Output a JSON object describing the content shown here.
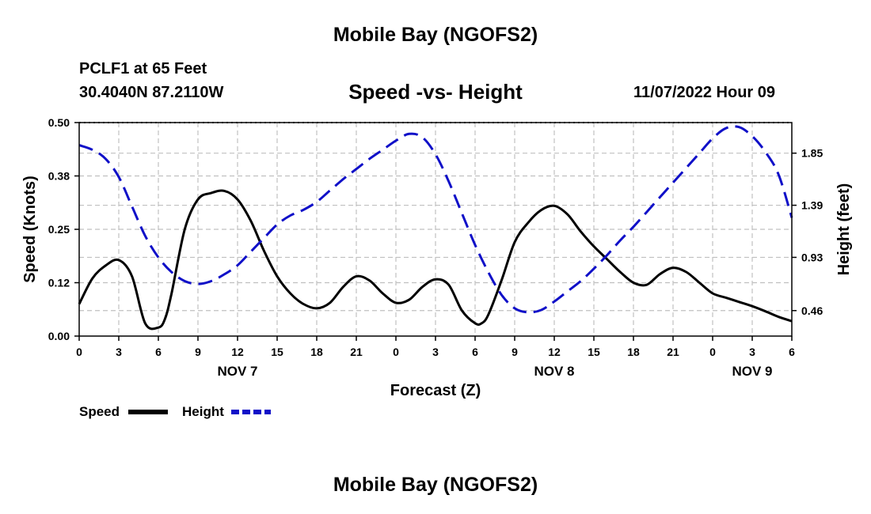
{
  "main_title": "Mobile Bay (NGOFS2)",
  "footer_title": "Mobile Bay (NGOFS2)",
  "station": "PCLF1 at 65 Feet",
  "coordinates": "30.4040N  87.2110W",
  "datetime": "11/07/2022 Hour 09",
  "colors": {
    "speed": "#000000",
    "height": "#1010c8",
    "grid": "#c0c0c0"
  },
  "chart_data": {
    "type": "line",
    "title": "Speed -vs- Height",
    "xlabel": "Forecast (Z)",
    "ylabel": "Speed (Knots)",
    "y2label": "Height (feet)",
    "x_unit": "hours from 00Z Nov 7",
    "xlim": [
      0,
      54
    ],
    "ylim": [
      0,
      0.5
    ],
    "y2lim": [
      0.235,
      2.12
    ],
    "x_ticks": [
      0,
      3,
      6,
      9,
      12,
      15,
      18,
      21,
      24,
      27,
      30,
      33,
      36,
      39,
      42,
      45,
      48,
      51,
      54
    ],
    "x_tick_labels": [
      "0",
      "3",
      "6",
      "9",
      "12",
      "15",
      "18",
      "21",
      "0",
      "3",
      "6",
      "9",
      "12",
      "15",
      "18",
      "21",
      "0",
      "3",
      "6"
    ],
    "date_labels": [
      {
        "x": 12,
        "label": "NOV 7"
      },
      {
        "x": 36,
        "label": "NOV 8"
      },
      {
        "x": 51,
        "label": "NOV 9"
      }
    ],
    "y_ticks": [
      0,
      0.125,
      0.25,
      0.375,
      0.5
    ],
    "y_tick_labels": [
      "0.00",
      "0.12",
      "0.25",
      "0.38",
      "0.50"
    ],
    "y2_ticks": [
      0.46,
      0.93,
      1.39,
      1.85
    ],
    "y2_tick_labels": [
      "0.46",
      "0.93",
      "1.39",
      "1.85"
    ],
    "grid": true,
    "series": [
      {
        "name": "Speed",
        "axis": "left",
        "style": "solid",
        "x": [
          0,
          1,
          2,
          3,
          4,
          5,
          6,
          6.5,
          7,
          8,
          9,
          10,
          11,
          12,
          13,
          14,
          15,
          16,
          17,
          18,
          19,
          20,
          21,
          22,
          23,
          24,
          25,
          26,
          27,
          28,
          29,
          30,
          30.5,
          31,
          32,
          33,
          34,
          35,
          36,
          37,
          38,
          39,
          40,
          41,
          42,
          43,
          44,
          45,
          46,
          47,
          48,
          49,
          50,
          51,
          52,
          53,
          54
        ],
        "y": [
          0.075,
          0.135,
          0.165,
          0.178,
          0.14,
          0.03,
          0.02,
          0.04,
          0.1,
          0.25,
          0.32,
          0.335,
          0.34,
          0.32,
          0.27,
          0.2,
          0.14,
          0.1,
          0.075,
          0.065,
          0.078,
          0.115,
          0.14,
          0.13,
          0.1,
          0.078,
          0.085,
          0.115,
          0.133,
          0.12,
          0.06,
          0.03,
          0.03,
          0.05,
          0.13,
          0.22,
          0.265,
          0.295,
          0.305,
          0.285,
          0.245,
          0.21,
          0.18,
          0.15,
          0.125,
          0.12,
          0.145,
          0.16,
          0.15,
          0.125,
          0.1,
          0.09,
          0.08,
          0.07,
          0.058,
          0.045,
          0.035
        ]
      },
      {
        "name": "Height",
        "axis": "right",
        "style": "dashed",
        "x": [
          0,
          1,
          2,
          3,
          4,
          5,
          6,
          7,
          8,
          9,
          10,
          11,
          12,
          13,
          14,
          15,
          16,
          17,
          18,
          19,
          20,
          21,
          22,
          23,
          24,
          25,
          26,
          27,
          28,
          29,
          30,
          31,
          32,
          33,
          34,
          35,
          36,
          37,
          38,
          39,
          40,
          41,
          42,
          43,
          44,
          45,
          46,
          47,
          48,
          49,
          50,
          51,
          52,
          53,
          54
        ],
        "y": [
          1.92,
          1.88,
          1.8,
          1.64,
          1.38,
          1.12,
          0.93,
          0.8,
          0.72,
          0.695,
          0.72,
          0.78,
          0.86,
          0.98,
          1.1,
          1.22,
          1.3,
          1.35,
          1.42,
          1.52,
          1.62,
          1.71,
          1.8,
          1.88,
          1.96,
          2.02,
          1.99,
          1.84,
          1.6,
          1.32,
          1.04,
          0.8,
          0.6,
          0.48,
          0.445,
          0.465,
          0.54,
          0.63,
          0.72,
          0.83,
          0.95,
          1.08,
          1.2,
          1.33,
          1.46,
          1.59,
          1.72,
          1.85,
          1.98,
          2.07,
          2.08,
          2.0,
          1.86,
          1.66,
          1.28
        ]
      }
    ],
    "legend": [
      {
        "label": "Speed",
        "style": "solid"
      },
      {
        "label": "Height",
        "style": "dashed"
      }
    ],
    "legend_position": "bottom-left"
  }
}
